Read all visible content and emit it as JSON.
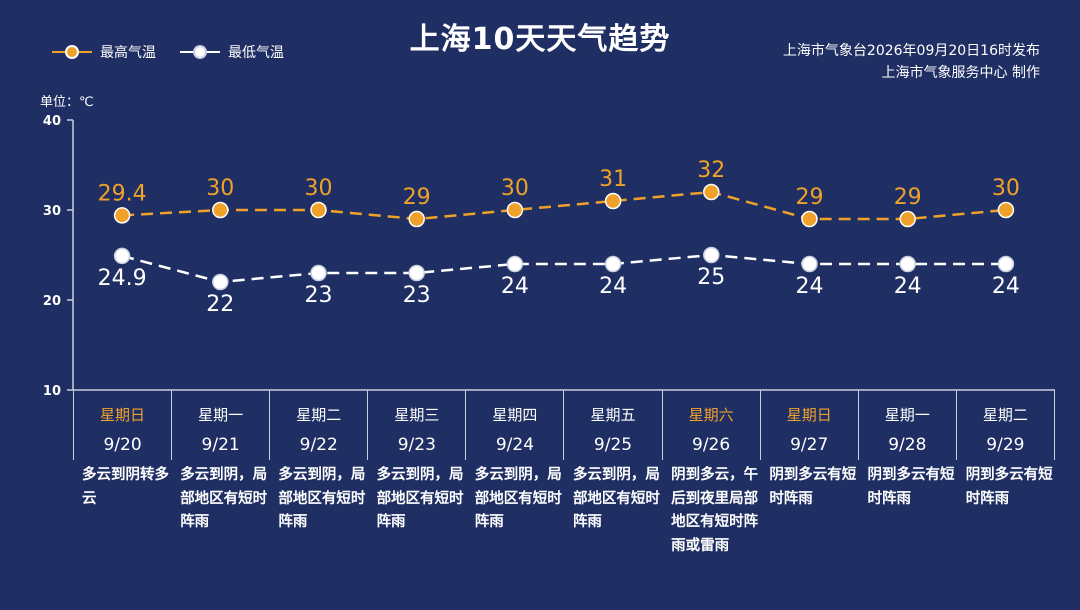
{
  "title": "上海10天天气趋势",
  "legend": {
    "high_label": "最高气温",
    "low_label": "最低气温"
  },
  "publisher": {
    "line1": "上海市气象台2026年09月20日16时发布",
    "line2": "上海市气象服务中心  制作"
  },
  "unit_label": "单位：℃",
  "colors": {
    "background": "#1f2f63",
    "high": "#f0a12a",
    "low": "#ffffff",
    "weekend_text": "#f0a12a"
  },
  "days": [
    {
      "weekday": "星期日",
      "date": "9/20",
      "weekend": true,
      "desc": "多云到阴转多云"
    },
    {
      "weekday": "星期一",
      "date": "9/21",
      "weekend": false,
      "desc": "多云到阴，局部地区有短时阵雨"
    },
    {
      "weekday": "星期二",
      "date": "9/22",
      "weekend": false,
      "desc": "多云到阴，局部地区有短时阵雨"
    },
    {
      "weekday": "星期三",
      "date": "9/23",
      "weekend": false,
      "desc": "多云到阴，局部地区有短时阵雨"
    },
    {
      "weekday": "星期四",
      "date": "9/24",
      "weekend": false,
      "desc": "多云到阴，局部地区有短时阵雨"
    },
    {
      "weekday": "星期五",
      "date": "9/25",
      "weekend": false,
      "desc": "多云到阴，局部地区有短时阵雨"
    },
    {
      "weekday": "星期六",
      "date": "9/26",
      "weekend": true,
      "desc": "阴到多云，午后到夜里局部地区有短时阵雨或雷雨"
    },
    {
      "weekday": "星期日",
      "date": "9/27",
      "weekend": true,
      "desc": "阴到多云有短时阵雨"
    },
    {
      "weekday": "星期一",
      "date": "9/28",
      "weekend": false,
      "desc": "阴到多云有短时阵雨"
    },
    {
      "weekday": "星期二",
      "date": "9/29",
      "weekend": false,
      "desc": "阴到多云有短时阵雨"
    }
  ],
  "chart_data": {
    "type": "line",
    "title": "上海10天天气趋势",
    "x": [
      "9/20",
      "9/21",
      "9/22",
      "9/23",
      "9/24",
      "9/25",
      "9/26",
      "9/27",
      "9/28",
      "9/29"
    ],
    "ylabel": "单位：℃",
    "ylim": [
      10,
      40
    ],
    "yticks": [
      10,
      20,
      30,
      40
    ],
    "grid": false,
    "legend_position": "top-left",
    "series": [
      {
        "name": "最高气温",
        "color": "#f0a12a",
        "values": [
          29.4,
          30,
          30,
          29,
          30,
          31,
          32,
          29,
          29,
          30
        ],
        "labels": [
          "29.4",
          "30",
          "30",
          "29",
          "30",
          "31",
          "32",
          "29",
          "29",
          "30"
        ],
        "label_position": "above"
      },
      {
        "name": "最低气温",
        "color": "#ffffff",
        "values": [
          24.9,
          22,
          23,
          23,
          24,
          24,
          25,
          24,
          24,
          24
        ],
        "labels": [
          "24.9",
          "22",
          "23",
          "23",
          "24",
          "24",
          "25",
          "24",
          "24",
          "24"
        ],
        "label_position": "below"
      }
    ]
  }
}
